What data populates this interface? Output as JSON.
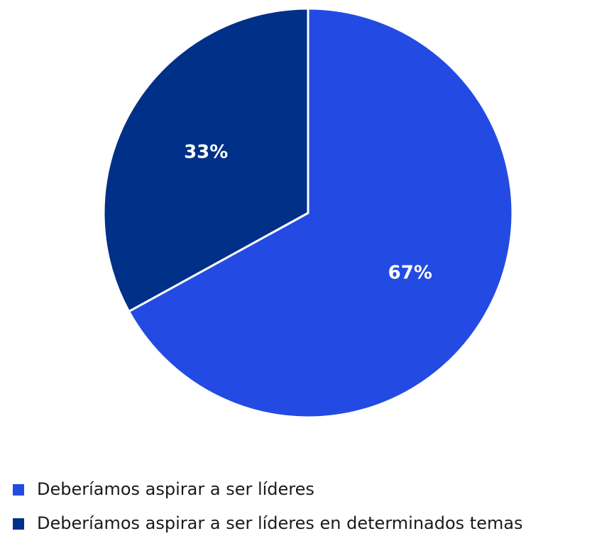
{
  "chart_data": {
    "type": "pie",
    "categories": [
      "Deberíamos aspirar a ser líderes",
      "Deberíamos aspirar a ser líderes en determinados temas"
    ],
    "values": [
      67,
      33
    ],
    "value_labels": [
      "67%",
      "33%"
    ],
    "colors": [
      "#234be3",
      "#003087"
    ]
  }
}
